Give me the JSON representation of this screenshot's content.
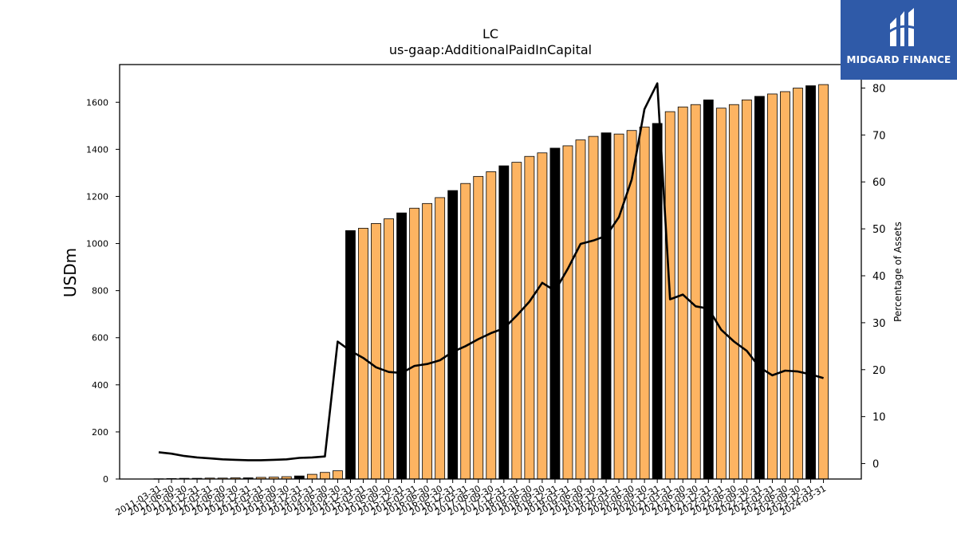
{
  "brand": {
    "name": "MIDGARD FINANCE",
    "bg_color": "#2f5aa8",
    "icon": "midgard-m-logo-icon"
  },
  "chart_data": {
    "type": "bar",
    "title": "LC",
    "subtitle": "us-gaap:AdditionalPaidInCapital",
    "ylabel": "USDm",
    "y2label": "Percentage of Assets",
    "ylim": [
      0,
      1760
    ],
    "y2lim": [
      -3.3,
      85
    ],
    "yticks": [
      0,
      200,
      400,
      600,
      800,
      1000,
      1200,
      1400,
      1600
    ],
    "y2ticks": [
      0,
      10,
      20,
      30,
      40,
      50,
      60,
      70,
      80
    ],
    "colors": {
      "bar": "#fdb462",
      "bar_annual": "#000000",
      "line": "#000000"
    },
    "categories": [
      "2011-03-31",
      "2011-06-30",
      "2011-09-30",
      "2011-12-31",
      "2012-03-31",
      "2012-06-30",
      "2012-09-30",
      "2012-12-31",
      "2013-03-31",
      "2013-06-30",
      "2013-09-30",
      "2013-12-31",
      "2014-03-31",
      "2014-06-30",
      "2014-09-30",
      "2014-12-31",
      "2015-03-31",
      "2015-06-30",
      "2015-09-30",
      "2015-12-31",
      "2016-03-31",
      "2016-06-30",
      "2016-09-30",
      "2016-12-31",
      "2017-03-31",
      "2017-06-30",
      "2017-09-30",
      "2017-12-31",
      "2018-03-31",
      "2018-06-30",
      "2018-09-30",
      "2018-12-31",
      "2019-03-31",
      "2019-06-30",
      "2019-09-30",
      "2019-12-31",
      "2020-03-31",
      "2020-06-30",
      "2020-09-30",
      "2020-12-31",
      "2021-03-31",
      "2021-06-30",
      "2021-09-30",
      "2021-12-31",
      "2022-03-31",
      "2022-06-30",
      "2022-09-30",
      "2022-12-31",
      "2023-03-31",
      "2023-06-30",
      "2023-09-30",
      "2023-12-31",
      "2024-03-31"
    ],
    "series": [
      {
        "type": "bar",
        "values": [
          1,
          2,
          3,
          3,
          4,
          4,
          5,
          5,
          7,
          8,
          10,
          13,
          20,
          28,
          35,
          1055,
          1065,
          1085,
          1105,
          1130,
          1150,
          1170,
          1195,
          1225,
          1255,
          1285,
          1305,
          1330,
          1345,
          1370,
          1385,
          1405,
          1415,
          1440,
          1455,
          1470,
          1465,
          1480,
          1495,
          1510,
          1560,
          1580,
          1590,
          1610,
          1575,
          1590,
          1610,
          1625,
          1635,
          1645,
          1660,
          1670,
          1675
        ],
        "annual": [
          false,
          false,
          false,
          true,
          false,
          false,
          false,
          true,
          false,
          false,
          false,
          true,
          false,
          false,
          false,
          true,
          false,
          false,
          false,
          true,
          false,
          false,
          false,
          true,
          false,
          false,
          false,
          true,
          false,
          false,
          false,
          true,
          false,
          false,
          false,
          true,
          false,
          false,
          false,
          true,
          false,
          false,
          false,
          true,
          false,
          false,
          false,
          true,
          false,
          false,
          false,
          true,
          false
        ]
      },
      {
        "type": "line",
        "axis": "y2",
        "values": [
          2.4,
          2.1,
          1.6,
          1.3,
          1.1,
          0.9,
          0.8,
          0.7,
          0.7,
          0.8,
          0.9,
          1.2,
          1.3,
          1.5,
          26.0,
          24.0,
          22.5,
          20.5,
          19.5,
          19.3,
          20.8,
          21.2,
          22.0,
          23.8,
          25.0,
          26.5,
          27.8,
          28.8,
          31.5,
          34.5,
          38.5,
          36.8,
          41.5,
          46.8,
          47.5,
          48.5,
          52.5,
          60.5,
          75.5,
          81.0,
          35.0,
          36.0,
          33.5,
          33.0,
          28.5,
          26.0,
          24.0,
          20.5,
          18.8,
          19.8,
          19.6,
          19.0,
          18.2
        ]
      }
    ]
  }
}
